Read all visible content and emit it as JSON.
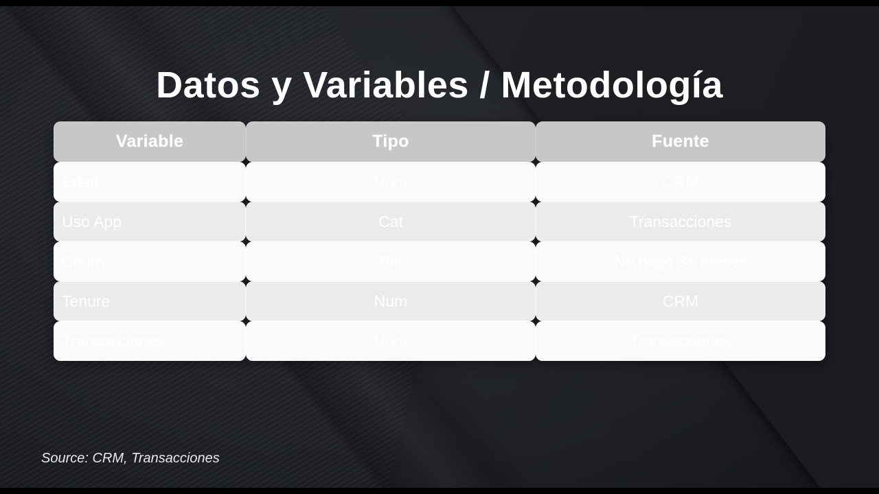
{
  "slide": {
    "title": "Datos y Variables / Metodología",
    "source_note": "Source: CRM, Transacciones"
  },
  "table": {
    "columns": [
      "Variable",
      "Tipo",
      "Fuente"
    ],
    "rows": [
      {
        "variable": "Edad",
        "tipo": "Num",
        "fuente": "CRM"
      },
      {
        "variable": "Uso App",
        "tipo": "Cat",
        "fuente": "Transacciones"
      },
      {
        "variable": "Churn",
        "tipo": "Bin",
        "fuente": "No pago 3+ meses"
      },
      {
        "variable": "Tenure",
        "tipo": "Num",
        "fuente": "CRM"
      },
      {
        "variable": "Transacciones",
        "tipo": "Num",
        "fuente": "Transacciones"
      }
    ]
  },
  "colors": {
    "slide_bg": "#212429",
    "panel_dark": "#1b1d21",
    "header_bg": "#c7c7c7",
    "row_bg": "#fafafa",
    "row_alt_bg": "#ebebeb",
    "cell_text": "#ffffff",
    "title_text": "#ffffff",
    "source_text": "#e8e8e8",
    "letterbox": "#000000"
  }
}
